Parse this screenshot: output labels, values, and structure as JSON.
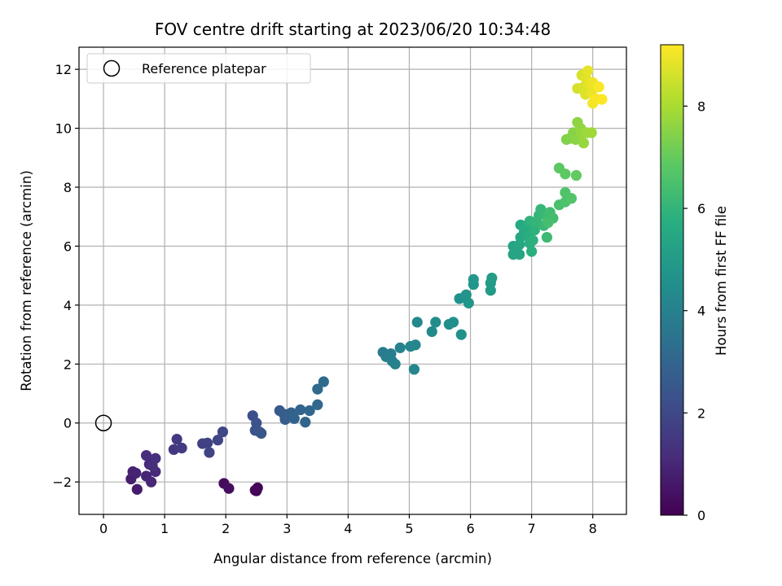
{
  "chart_data": {
    "type": "scatter",
    "title": "FOV centre drift starting at 2023/06/20 10:34:48",
    "xlabel": "Angular distance from reference (arcmin)",
    "ylabel": "Rotation from reference (arcmin)",
    "xlim": [
      -0.4,
      8.55
    ],
    "ylim": [
      -3.1,
      12.75
    ],
    "x_ticks": [
      0,
      1,
      2,
      3,
      4,
      5,
      6,
      7,
      8
    ],
    "x_tick_labels": [
      "0",
      "1",
      "2",
      "3",
      "4",
      "5",
      "6",
      "7",
      "8"
    ],
    "y_ticks": [
      -2,
      0,
      2,
      4,
      6,
      8,
      10,
      12
    ],
    "y_tick_labels": [
      "−2",
      "0",
      "2",
      "4",
      "6",
      "8",
      "10",
      "12"
    ],
    "grid": true,
    "legend": {
      "position": "top-left",
      "entries": [
        "Reference platepar"
      ]
    },
    "reference_point": {
      "x": 0,
      "y": 0,
      "label": "Reference platepar"
    },
    "colorbar": {
      "label": "Hours from first FF file",
      "colormap": "viridis",
      "range": [
        0,
        9.2
      ],
      "ticks": [
        0,
        2,
        4,
        6,
        8
      ],
      "tick_labels": [
        "0",
        "2",
        "4",
        "6",
        "8"
      ]
    },
    "points": [
      {
        "x": 2.5,
        "y": -2.3,
        "t": 0.05
      },
      {
        "x": 2.52,
        "y": -2.2,
        "t": 0.1
      },
      {
        "x": 2.48,
        "y": -2.28,
        "t": 0.15
      },
      {
        "x": 1.97,
        "y": -2.05,
        "t": 0.3
      },
      {
        "x": 2.05,
        "y": -2.22,
        "t": 0.35
      },
      {
        "x": 0.55,
        "y": -2.25,
        "t": 0.7
      },
      {
        "x": 0.45,
        "y": -1.9,
        "t": 0.8
      },
      {
        "x": 0.48,
        "y": -1.65,
        "t": 0.85
      },
      {
        "x": 0.53,
        "y": -1.7,
        "t": 0.9
      },
      {
        "x": 0.7,
        "y": -1.8,
        "t": 0.95
      },
      {
        "x": 0.78,
        "y": -2.0,
        "t": 1.0
      },
      {
        "x": 0.75,
        "y": -1.4,
        "t": 1.05
      },
      {
        "x": 0.85,
        "y": -1.65,
        "t": 1.1
      },
      {
        "x": 0.7,
        "y": -1.1,
        "t": 1.15
      },
      {
        "x": 0.85,
        "y": -1.2,
        "t": 1.2
      },
      {
        "x": 0.8,
        "y": -1.45,
        "t": 1.25
      },
      {
        "x": 1.15,
        "y": -0.9,
        "t": 1.5
      },
      {
        "x": 1.2,
        "y": -0.55,
        "t": 1.55
      },
      {
        "x": 1.28,
        "y": -0.85,
        "t": 1.6
      },
      {
        "x": 1.62,
        "y": -0.7,
        "t": 1.75
      },
      {
        "x": 1.7,
        "y": -0.68,
        "t": 1.8
      },
      {
        "x": 1.73,
        "y": -1.0,
        "t": 1.85
      },
      {
        "x": 1.87,
        "y": -0.58,
        "t": 1.9
      },
      {
        "x": 1.95,
        "y": -0.3,
        "t": 1.95
      },
      {
        "x": 2.44,
        "y": 0.25,
        "t": 2.2
      },
      {
        "x": 2.5,
        "y": 0.0,
        "t": 2.3
      },
      {
        "x": 2.48,
        "y": -0.25,
        "t": 2.35
      },
      {
        "x": 2.55,
        "y": -0.3,
        "t": 2.4
      },
      {
        "x": 2.58,
        "y": -0.35,
        "t": 2.45
      },
      {
        "x": 2.88,
        "y": 0.42,
        "t": 2.6
      },
      {
        "x": 2.95,
        "y": 0.3,
        "t": 2.65
      },
      {
        "x": 2.97,
        "y": 0.12,
        "t": 2.7
      },
      {
        "x": 3.02,
        "y": 0.25,
        "t": 2.75
      },
      {
        "x": 3.07,
        "y": 0.35,
        "t": 2.8
      },
      {
        "x": 3.1,
        "y": 0.3,
        "t": 2.85
      },
      {
        "x": 3.12,
        "y": 0.15,
        "t": 2.9
      },
      {
        "x": 3.22,
        "y": 0.45,
        "t": 2.95
      },
      {
        "x": 3.3,
        "y": 0.03,
        "t": 3.0
      },
      {
        "x": 3.37,
        "y": 0.42,
        "t": 3.05
      },
      {
        "x": 3.5,
        "y": 0.62,
        "t": 3.1
      },
      {
        "x": 3.5,
        "y": 1.15,
        "t": 3.15
      },
      {
        "x": 3.6,
        "y": 1.4,
        "t": 3.2
      },
      {
        "x": 4.57,
        "y": 2.4,
        "t": 3.8
      },
      {
        "x": 4.62,
        "y": 2.25,
        "t": 3.85
      },
      {
        "x": 4.7,
        "y": 2.35,
        "t": 3.9
      },
      {
        "x": 4.72,
        "y": 2.1,
        "t": 3.95
      },
      {
        "x": 4.77,
        "y": 2.0,
        "t": 4.0
      },
      {
        "x": 4.85,
        "y": 2.55,
        "t": 4.05
      },
      {
        "x": 5.02,
        "y": 2.6,
        "t": 4.15
      },
      {
        "x": 5.1,
        "y": 2.65,
        "t": 4.2
      },
      {
        "x": 5.08,
        "y": 1.82,
        "t": 4.2
      },
      {
        "x": 5.13,
        "y": 3.42,
        "t": 4.25
      },
      {
        "x": 5.37,
        "y": 3.1,
        "t": 4.35
      },
      {
        "x": 5.43,
        "y": 3.42,
        "t": 4.4
      },
      {
        "x": 5.65,
        "y": 3.35,
        "t": 4.5
      },
      {
        "x": 5.72,
        "y": 3.42,
        "t": 4.55
      },
      {
        "x": 5.85,
        "y": 3.0,
        "t": 4.6
      },
      {
        "x": 5.82,
        "y": 4.22,
        "t": 4.65
      },
      {
        "x": 5.93,
        "y": 4.35,
        "t": 4.7
      },
      {
        "x": 5.97,
        "y": 4.07,
        "t": 4.75
      },
      {
        "x": 6.05,
        "y": 4.7,
        "t": 4.8
      },
      {
        "x": 6.05,
        "y": 4.87,
        "t": 4.85
      },
      {
        "x": 6.33,
        "y": 4.5,
        "t": 4.95
      },
      {
        "x": 6.33,
        "y": 4.75,
        "t": 5.0
      },
      {
        "x": 6.35,
        "y": 4.92,
        "t": 5.05
      },
      {
        "x": 6.7,
        "y": 6.0,
        "t": 5.3
      },
      {
        "x": 6.7,
        "y": 5.72,
        "t": 5.35
      },
      {
        "x": 6.8,
        "y": 5.72,
        "t": 5.4
      },
      {
        "x": 6.8,
        "y": 6.05,
        "t": 5.45
      },
      {
        "x": 6.82,
        "y": 6.3,
        "t": 5.5
      },
      {
        "x": 6.88,
        "y": 6.5,
        "t": 5.55
      },
      {
        "x": 6.82,
        "y": 6.72,
        "t": 5.6
      },
      {
        "x": 6.92,
        "y": 6.62,
        "t": 5.65
      },
      {
        "x": 6.95,
        "y": 6.35,
        "t": 5.7
      },
      {
        "x": 6.97,
        "y": 6.1,
        "t": 5.75
      },
      {
        "x": 7.0,
        "y": 5.82,
        "t": 5.8
      },
      {
        "x": 7.02,
        "y": 6.2,
        "t": 5.85
      },
      {
        "x": 7.05,
        "y": 6.55,
        "t": 5.9
      },
      {
        "x": 6.97,
        "y": 6.85,
        "t": 5.95
      },
      {
        "x": 7.08,
        "y": 6.85,
        "t": 6.0
      },
      {
        "x": 7.12,
        "y": 7.05,
        "t": 6.05
      },
      {
        "x": 7.15,
        "y": 7.25,
        "t": 6.1
      },
      {
        "x": 7.2,
        "y": 6.7,
        "t": 6.15
      },
      {
        "x": 7.25,
        "y": 6.3,
        "t": 6.2
      },
      {
        "x": 7.25,
        "y": 7.0,
        "t": 6.25
      },
      {
        "x": 7.3,
        "y": 7.15,
        "t": 6.3
      },
      {
        "x": 7.35,
        "y": 6.95,
        "t": 6.35
      },
      {
        "x": 7.27,
        "y": 6.8,
        "t": 6.4
      },
      {
        "x": 7.45,
        "y": 7.4,
        "t": 6.5
      },
      {
        "x": 7.55,
        "y": 7.5,
        "t": 6.55
      },
      {
        "x": 7.55,
        "y": 7.82,
        "t": 6.6
      },
      {
        "x": 7.65,
        "y": 7.62,
        "t": 6.65
      },
      {
        "x": 7.45,
        "y": 8.65,
        "t": 6.85
      },
      {
        "x": 7.55,
        "y": 8.45,
        "t": 6.9
      },
      {
        "x": 7.73,
        "y": 8.4,
        "t": 6.95
      },
      {
        "x": 7.57,
        "y": 9.62,
        "t": 7.4
      },
      {
        "x": 7.62,
        "y": 9.65,
        "t": 7.45
      },
      {
        "x": 7.68,
        "y": 9.85,
        "t": 7.5
      },
      {
        "x": 7.72,
        "y": 9.62,
        "t": 7.55
      },
      {
        "x": 7.75,
        "y": 10.2,
        "t": 7.6
      },
      {
        "x": 7.8,
        "y": 10.0,
        "t": 7.65
      },
      {
        "x": 7.82,
        "y": 9.82,
        "t": 7.7
      },
      {
        "x": 7.85,
        "y": 9.5,
        "t": 7.75
      },
      {
        "x": 7.9,
        "y": 9.85,
        "t": 7.8
      },
      {
        "x": 7.98,
        "y": 9.85,
        "t": 7.85
      },
      {
        "x": 7.75,
        "y": 11.35,
        "t": 8.6
      },
      {
        "x": 7.82,
        "y": 11.8,
        "t": 8.65
      },
      {
        "x": 7.85,
        "y": 11.4,
        "t": 8.7
      },
      {
        "x": 7.88,
        "y": 11.15,
        "t": 8.75
      },
      {
        "x": 7.9,
        "y": 11.65,
        "t": 8.8
      },
      {
        "x": 7.92,
        "y": 11.95,
        "t": 8.85
      },
      {
        "x": 7.95,
        "y": 11.5,
        "t": 8.9
      },
      {
        "x": 7.98,
        "y": 11.2,
        "t": 8.95
      },
      {
        "x": 8.0,
        "y": 11.55,
        "t": 9.0
      },
      {
        "x": 8.0,
        "y": 10.85,
        "t": 9.05
      },
      {
        "x": 8.05,
        "y": 11.0,
        "t": 9.1
      },
      {
        "x": 8.1,
        "y": 11.4,
        "t": 9.15
      },
      {
        "x": 8.15,
        "y": 10.98,
        "t": 9.2
      }
    ]
  }
}
